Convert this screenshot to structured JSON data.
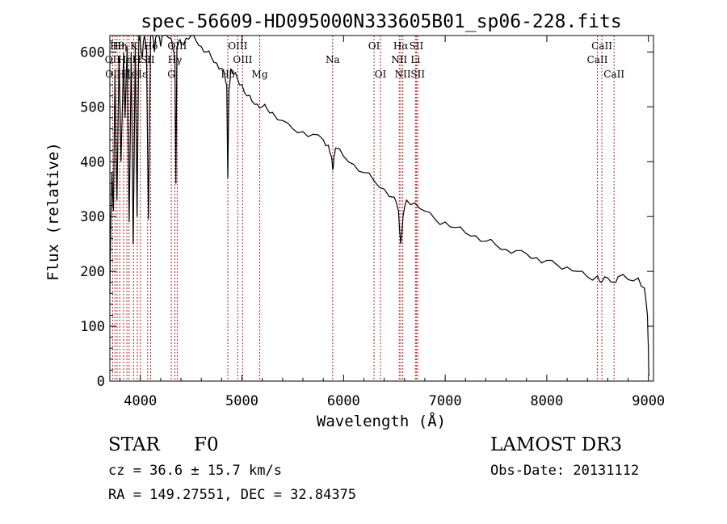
{
  "chart_data": {
    "type": "line",
    "title": "spec-56609-HD095000N333605B01_sp06-228.fits",
    "xlabel": "Wavelength (Å)",
    "ylabel": "Flux (relative)",
    "xlim": [
      3700,
      9050
    ],
    "ylim": [
      0,
      630
    ],
    "xticks": [
      4000,
      5000,
      6000,
      7000,
      8000,
      9000
    ],
    "yticks": [
      0,
      100,
      200,
      300,
      400,
      500,
      600
    ],
    "series": [
      {
        "name": "spectrum",
        "x": [
          3700,
          3710,
          3720,
          3735,
          3750,
          3770,
          3790,
          3810,
          3835,
          3850,
          3870,
          3890,
          3910,
          3930,
          3950,
          3968,
          3985,
          4000,
          4020,
          4040,
          4060,
          4080,
          4101,
          4120,
          4140,
          4160,
          4180,
          4200,
          4230,
          4260,
          4290,
          4310,
          4330,
          4340,
          4350,
          4360,
          4380,
          4400,
          4450,
          4500,
          4550,
          4600,
          4650,
          4700,
          4750,
          4800,
          4830,
          4850,
          4861,
          4872,
          4890,
          4920,
          4950,
          5000,
          5050,
          5100,
          5150,
          5200,
          5250,
          5300,
          5400,
          5500,
          5600,
          5700,
          5800,
          5850,
          5880,
          5893,
          5905,
          5920,
          6000,
          6100,
          6200,
          6300,
          6400,
          6500,
          6540,
          6563,
          6585,
          6620,
          6700,
          6800,
          6900,
          7000,
          7100,
          7200,
          7300,
          7400,
          7500,
          7600,
          7700,
          7800,
          7900,
          8000,
          8100,
          8200,
          8300,
          8400,
          8500,
          8540,
          8600,
          8660,
          8700,
          8800,
          8900,
          8960,
          8990,
          9000,
          9005
        ],
        "y": [
          160,
          300,
          380,
          310,
          560,
          330,
          590,
          400,
          600,
          480,
          610,
          290,
          600,
          250,
          615,
          300,
          635,
          620,
          590,
          640,
          610,
          295,
          630,
          650,
          600,
          640,
          650,
          610,
          635,
          640,
          625,
          620,
          600,
          590,
          360,
          610,
          620,
          615,
          625,
          630,
          620,
          610,
          600,
          590,
          580,
          570,
          560,
          540,
          370,
          530,
          570,
          560,
          555,
          540,
          520,
          510,
          505,
          500,
          495,
          490,
          475,
          460,
          455,
          450,
          440,
          430,
          410,
          385,
          410,
          425,
          410,
          395,
          380,
          365,
          350,
          335,
          310,
          250,
          300,
          330,
          325,
          310,
          295,
          290,
          280,
          270,
          265,
          255,
          248,
          240,
          238,
          232,
          225,
          220,
          212,
          208,
          200,
          190,
          192,
          180,
          188,
          180,
          190,
          185,
          188,
          170,
          120,
          60,
          10
        ]
      }
    ],
    "lines": [
      {
        "wavelength": 3727,
        "label": "OII",
        "row": 1
      },
      {
        "wavelength": 3750,
        "label": "OIII",
        "row": 2
      },
      {
        "wavelength": 3771,
        "label": "Hθ",
        "row": 0
      },
      {
        "wavelength": 3798,
        "label": "Hη",
        "row": 0
      },
      {
        "wavelength": 3835,
        "label": "Hζ",
        "row": 2
      },
      {
        "wavelength": 3868,
        "label": "HeI",
        "row": 1
      },
      {
        "wavelength": 3889,
        "label": "Hε",
        "row": 2
      },
      {
        "wavelength": 3934,
        "label": "K",
        "row": 0
      },
      {
        "wavelength": 3970,
        "label": "H",
        "row": 1
      },
      {
        "wavelength": 4000,
        "label": "Hε",
        "row": 2
      },
      {
        "wavelength": 4072,
        "label": "SII",
        "row": 1
      },
      {
        "wavelength": 4102,
        "label": "Hδ",
        "row": 0
      },
      {
        "wavelength": 4305,
        "label": "G",
        "row": 2
      },
      {
        "wavelength": 4340,
        "label": "Hγ",
        "row": 1
      },
      {
        "wavelength": 4363,
        "label": "OIII",
        "row": 0
      },
      {
        "wavelength": 4861,
        "label": "Hβ",
        "row": 2
      },
      {
        "wavelength": 4959,
        "label": "OIII",
        "row": 0
      },
      {
        "wavelength": 5007,
        "label": "OIII",
        "row": 1
      },
      {
        "wavelength": 5175,
        "label": "Mg",
        "row": 2
      },
      {
        "wavelength": 5893,
        "label": "Na",
        "row": 1
      },
      {
        "wavelength": 6300,
        "label": "OI",
        "row": 0
      },
      {
        "wavelength": 6363,
        "label": "OI",
        "row": 2
      },
      {
        "wavelength": 6548,
        "label": "NII",
        "row": 1
      },
      {
        "wavelength": 6563,
        "label": "Hα",
        "row": 0
      },
      {
        "wavelength": 6583,
        "label": "NII",
        "row": 2
      },
      {
        "wavelength": 6707,
        "label": "Li",
        "row": 1
      },
      {
        "wavelength": 6716,
        "label": "SII",
        "row": 0
      },
      {
        "wavelength": 6731,
        "label": "SII",
        "row": 2
      },
      {
        "wavelength": 8498,
        "label": "CaII",
        "row": 1
      },
      {
        "wavelength": 8542,
        "label": "CaII",
        "row": 0
      },
      {
        "wavelength": 8662,
        "label": "CaII",
        "row": 2
      }
    ]
  },
  "info": {
    "object_type": "STAR",
    "subclass": "F0",
    "survey": "LAMOST DR3",
    "redshift": "cz = 36.6 ± 15.7 km/s",
    "obs_date": "Obs-Date: 20131112",
    "coords": "RA = 149.27551, DEC =  32.84375"
  },
  "colors": {
    "spectrum": "#000000",
    "line_marker": "#b22222",
    "axes": "#000000"
  }
}
